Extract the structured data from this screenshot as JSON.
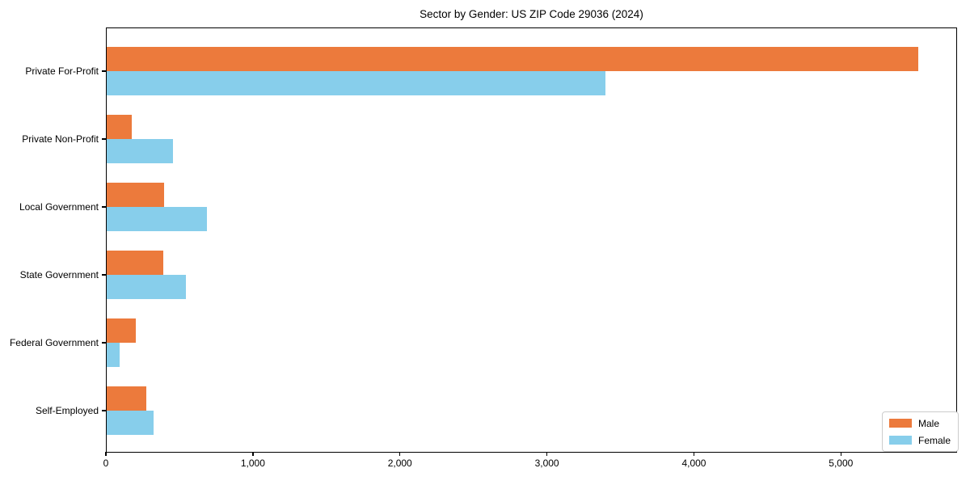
{
  "title": "Sector by Gender: US ZIP Code 29036 (2024)",
  "chart_data": {
    "type": "bar",
    "orientation": "horizontal",
    "title": "Sector by Gender: US ZIP Code 29036 (2024)",
    "xlabel": "",
    "ylabel": "",
    "categories": [
      "Private For-Profit",
      "Private Non-Profit",
      "Local Government",
      "State Government",
      "Federal Government",
      "Self-Employed"
    ],
    "series": [
      {
        "name": "Male",
        "color": "#EC7A3C",
        "values": [
          5520,
          170,
          390,
          385,
          200,
          270
        ]
      },
      {
        "name": "Female",
        "color": "#87CEEB",
        "values": [
          3390,
          450,
          680,
          540,
          90,
          320
        ]
      }
    ],
    "xlim": [
      0,
      5790
    ],
    "xticks": {
      "values": [
        0,
        1000,
        2000,
        3000,
        4000,
        5000
      ],
      "labels": [
        "0",
        "1,000",
        "2,000",
        "3,000",
        "4,000",
        "5,000"
      ]
    },
    "grid": false,
    "legend": {
      "position": "lower right",
      "entries": [
        "Male",
        "Female"
      ]
    }
  },
  "colors": {
    "male": "#EC7A3C",
    "female": "#87CEEB",
    "axis": "#000000",
    "legend_border": "#cccccc",
    "background": "#ffffff"
  }
}
